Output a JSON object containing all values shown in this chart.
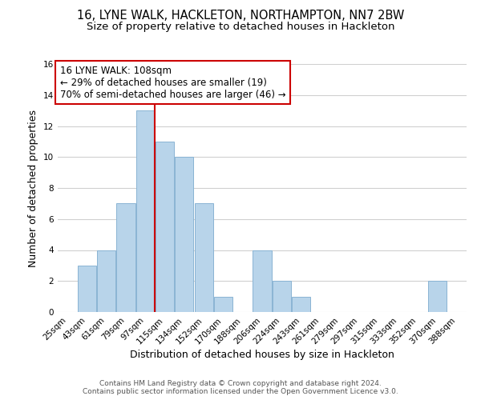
{
  "title": "16, LYNE WALK, HACKLETON, NORTHAMPTON, NN7 2BW",
  "subtitle": "Size of property relative to detached houses in Hackleton",
  "xlabel": "Distribution of detached houses by size in Hackleton",
  "ylabel": "Number of detached properties",
  "categories": [
    "25sqm",
    "43sqm",
    "61sqm",
    "79sqm",
    "97sqm",
    "115sqm",
    "134sqm",
    "152sqm",
    "170sqm",
    "188sqm",
    "206sqm",
    "224sqm",
    "243sqm",
    "261sqm",
    "279sqm",
    "297sqm",
    "315sqm",
    "333sqm",
    "352sqm",
    "370sqm",
    "388sqm"
  ],
  "values": [
    0,
    3,
    4,
    7,
    13,
    11,
    10,
    7,
    1,
    0,
    4,
    2,
    1,
    0,
    0,
    0,
    0,
    0,
    0,
    2,
    0
  ],
  "bar_color": "#b8d4ea",
  "bar_edge_color": "#8ab4d4",
  "vline_color": "#cc0000",
  "ylim": [
    0,
    16
  ],
  "yticks": [
    0,
    2,
    4,
    6,
    8,
    10,
    12,
    14,
    16
  ],
  "annotation_line1": "16 LYNE WALK: 108sqm",
  "annotation_line2": "← 29% of detached houses are smaller (19)",
  "annotation_line3": "70% of semi-detached houses are larger (46) →",
  "annotation_box_color": "#ffffff",
  "annotation_box_edge": "#cc0000",
  "footer_line1": "Contains HM Land Registry data © Crown copyright and database right 2024.",
  "footer_line2": "Contains public sector information licensed under the Open Government Licence v3.0.",
  "bg_color": "#ffffff",
  "grid_color": "#d0d0d0",
  "title_fontsize": 10.5,
  "subtitle_fontsize": 9.5,
  "axis_label_fontsize": 9,
  "tick_fontsize": 7.5,
  "annotation_fontsize": 8.5,
  "footer_fontsize": 6.5
}
